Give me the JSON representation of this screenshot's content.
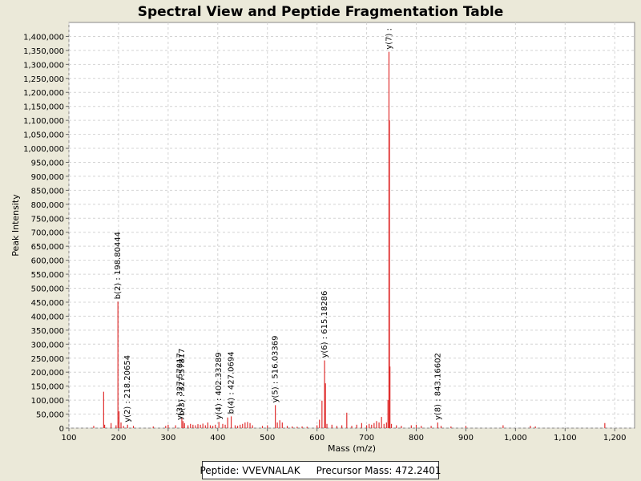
{
  "chart_data": {
    "type": "bar",
    "title": "Spectral View and Peptide Fragmentation Table",
    "xlabel": "Mass (m/z)",
    "ylabel": "Peak Intensity",
    "xlim": [
      100,
      1240
    ],
    "ylim": [
      0,
      1450000
    ],
    "xticks": [
      100,
      200,
      300,
      400,
      500,
      600,
      700,
      800,
      900,
      1000,
      1100,
      1200
    ],
    "xtick_labels": [
      "100",
      "200",
      "300",
      "400",
      "500",
      "600",
      "700",
      "800",
      "900",
      "1,000",
      "1,100",
      "1,200"
    ],
    "yticks": [
      0,
      50000,
      100000,
      150000,
      200000,
      250000,
      300000,
      350000,
      400000,
      450000,
      500000,
      550000,
      600000,
      650000,
      700000,
      750000,
      800000,
      850000,
      900000,
      950000,
      1000000,
      1050000,
      1100000,
      1150000,
      1200000,
      1250000,
      1300000,
      1350000,
      1400000
    ],
    "ytick_labels": [
      "0",
      "50,000",
      "100,000",
      "150,000",
      "200,000",
      "250,000",
      "300,000",
      "350,000",
      "400,000",
      "450,000",
      "500,000",
      "550,000",
      "600,000",
      "650,000",
      "700,000",
      "750,000",
      "800,000",
      "850,000",
      "900,000",
      "950,000",
      "1,000,000",
      "1,050,000",
      "1,100,000",
      "1,150,000",
      "1,200,000",
      "1,250,000",
      "1,300,000",
      "1,350,000",
      "1,400,000"
    ],
    "grid": true,
    "bar_color": "#e03030",
    "peaks": [
      {
        "mz": 150,
        "intensity": 8000
      },
      {
        "mz": 170,
        "intensity": 130000
      },
      {
        "mz": 172,
        "intensity": 12000
      },
      {
        "mz": 185,
        "intensity": 18000
      },
      {
        "mz": 195,
        "intensity": 10000
      },
      {
        "mz": 198.8,
        "intensity": 452000
      },
      {
        "mz": 201,
        "intensity": 60000
      },
      {
        "mz": 205,
        "intensity": 20000
      },
      {
        "mz": 210,
        "intensity": 8000
      },
      {
        "mz": 218.2,
        "intensity": 12000
      },
      {
        "mz": 230,
        "intensity": 8000
      },
      {
        "mz": 270,
        "intensity": 6000
      },
      {
        "mz": 295,
        "intensity": 8000
      },
      {
        "mz": 300,
        "intensity": 12000
      },
      {
        "mz": 315,
        "intensity": 10000
      },
      {
        "mz": 327.6,
        "intensity": 35000
      },
      {
        "mz": 330,
        "intensity": 25000
      },
      {
        "mz": 333,
        "intensity": 18000
      },
      {
        "mz": 340,
        "intensity": 10000
      },
      {
        "mz": 345,
        "intensity": 15000
      },
      {
        "mz": 350,
        "intensity": 12000
      },
      {
        "mz": 355,
        "intensity": 10000
      },
      {
        "mz": 360,
        "intensity": 14000
      },
      {
        "mz": 365,
        "intensity": 12000
      },
      {
        "mz": 370,
        "intensity": 16000
      },
      {
        "mz": 375,
        "intensity": 10000
      },
      {
        "mz": 380,
        "intensity": 20000
      },
      {
        "mz": 385,
        "intensity": 10000
      },
      {
        "mz": 390,
        "intensity": 8000
      },
      {
        "mz": 395,
        "intensity": 12000
      },
      {
        "mz": 402.3,
        "intensity": 22000
      },
      {
        "mz": 410,
        "intensity": 15000
      },
      {
        "mz": 415,
        "intensity": 12000
      },
      {
        "mz": 420,
        "intensity": 38000
      },
      {
        "mz": 427.1,
        "intensity": 42000
      },
      {
        "mz": 435,
        "intensity": 10000
      },
      {
        "mz": 440,
        "intensity": 8000
      },
      {
        "mz": 445,
        "intensity": 12000
      },
      {
        "mz": 450,
        "intensity": 15000
      },
      {
        "mz": 455,
        "intensity": 20000
      },
      {
        "mz": 460,
        "intensity": 22000
      },
      {
        "mz": 465,
        "intensity": 18000
      },
      {
        "mz": 470,
        "intensity": 10000
      },
      {
        "mz": 490,
        "intensity": 8000
      },
      {
        "mz": 500,
        "intensity": 10000
      },
      {
        "mz": 516,
        "intensity": 82000
      },
      {
        "mz": 520,
        "intensity": 20000
      },
      {
        "mz": 525,
        "intensity": 28000
      },
      {
        "mz": 530,
        "intensity": 20000
      },
      {
        "mz": 540,
        "intensity": 8000
      },
      {
        "mz": 550,
        "intensity": 6000
      },
      {
        "mz": 560,
        "intensity": 5000
      },
      {
        "mz": 570,
        "intensity": 6000
      },
      {
        "mz": 580,
        "intensity": 5000
      },
      {
        "mz": 600,
        "intensity": 10000
      },
      {
        "mz": 605,
        "intensity": 30000
      },
      {
        "mz": 610,
        "intensity": 98000
      },
      {
        "mz": 615.2,
        "intensity": 242000
      },
      {
        "mz": 617,
        "intensity": 160000
      },
      {
        "mz": 620,
        "intensity": 15000
      },
      {
        "mz": 630,
        "intensity": 12000
      },
      {
        "mz": 640,
        "intensity": 8000
      },
      {
        "mz": 650,
        "intensity": 10000
      },
      {
        "mz": 660,
        "intensity": 55000
      },
      {
        "mz": 670,
        "intensity": 8000
      },
      {
        "mz": 680,
        "intensity": 12000
      },
      {
        "mz": 690,
        "intensity": 18000
      },
      {
        "mz": 700,
        "intensity": 10000
      },
      {
        "mz": 705,
        "intensity": 15000
      },
      {
        "mz": 710,
        "intensity": 12000
      },
      {
        "mz": 715,
        "intensity": 18000
      },
      {
        "mz": 720,
        "intensity": 25000
      },
      {
        "mz": 725,
        "intensity": 20000
      },
      {
        "mz": 730,
        "intensity": 40000
      },
      {
        "mz": 735,
        "intensity": 15000
      },
      {
        "mz": 740,
        "intensity": 20000
      },
      {
        "mz": 743,
        "intensity": 100000
      },
      {
        "mz": 745,
        "intensity": 1345000
      },
      {
        "mz": 746,
        "intensity": 1100000
      },
      {
        "mz": 747,
        "intensity": 220000
      },
      {
        "mz": 750,
        "intensity": 15000
      },
      {
        "mz": 760,
        "intensity": 10000
      },
      {
        "mz": 770,
        "intensity": 8000
      },
      {
        "mz": 790,
        "intensity": 10000
      },
      {
        "mz": 800,
        "intensity": 12000
      },
      {
        "mz": 810,
        "intensity": 8000
      },
      {
        "mz": 830,
        "intensity": 8000
      },
      {
        "mz": 843.2,
        "intensity": 20000
      },
      {
        "mz": 850,
        "intensity": 8000
      },
      {
        "mz": 870,
        "intensity": 6000
      },
      {
        "mz": 900,
        "intensity": 8000
      },
      {
        "mz": 975,
        "intensity": 10000
      },
      {
        "mz": 1030,
        "intensity": 8000
      },
      {
        "mz": 1040,
        "intensity": 6000
      },
      {
        "mz": 1180,
        "intensity": 18000
      }
    ],
    "annotations": [
      {
        "text": "b(2) : 198.80444",
        "mz": 198.8,
        "intensity": 452000
      },
      {
        "text": "y(2) : 218.20654",
        "mz": 218.2,
        "intensity": 12000
      },
      {
        "text": "y(3) : 327.57817",
        "mz": 324,
        "intensity": 20000
      },
      {
        "text": "b(3) : 327.57817",
        "mz": 327.6,
        "intensity": 35000
      },
      {
        "text": "y(4) : 402.33289",
        "mz": 402.3,
        "intensity": 22000
      },
      {
        "text": "b(4) : 427.0694",
        "mz": 427.1,
        "intensity": 42000
      },
      {
        "text": "y(5) : 516.03369",
        "mz": 516,
        "intensity": 82000
      },
      {
        "text": "y(6) : 615.18286",
        "mz": 615.2,
        "intensity": 242000
      },
      {
        "text": "y(7) :",
        "mz": 745,
        "intensity": 1345000
      },
      {
        "text": "y(8) : 843.16602",
        "mz": 843.2,
        "intensity": 20000
      }
    ]
  },
  "legend": {
    "peptide_text": "Peptide: VVEVNALAK",
    "precursor_text": "Precursor Mass: 472.2401"
  }
}
